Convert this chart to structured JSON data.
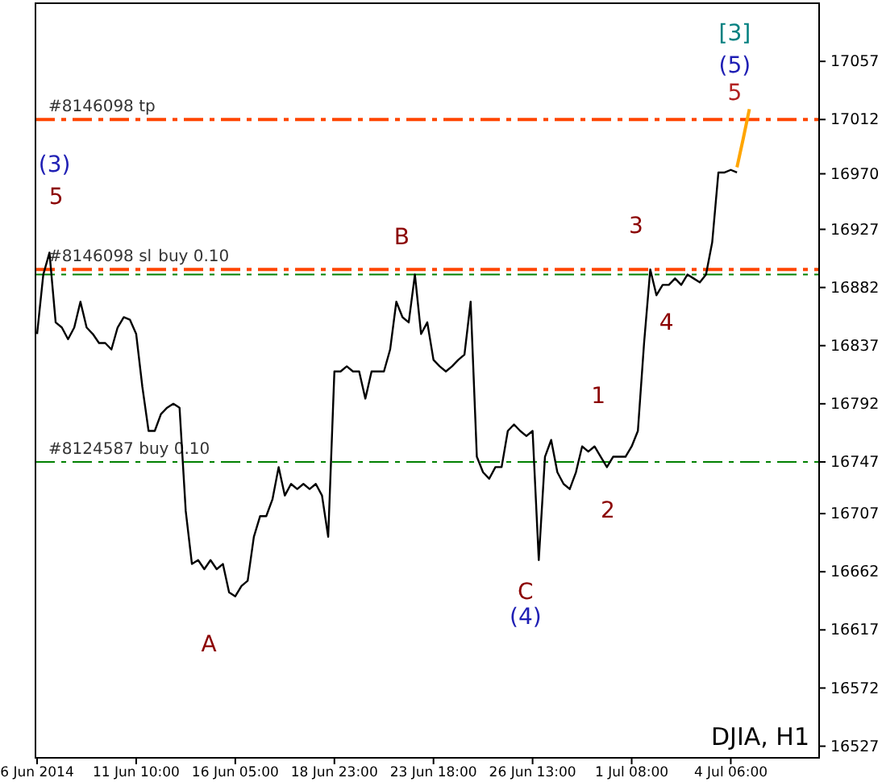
{
  "chart_data": {
    "type": "line",
    "categories": [
      "6 Jun 2014",
      null,
      null,
      null,
      null,
      null,
      null,
      null,
      null,
      null,
      null,
      null,
      null,
      null,
      null,
      null,
      "11 Jun 10:00",
      null,
      null,
      null,
      null,
      null,
      null,
      null,
      null,
      null,
      null,
      null,
      null,
      null,
      null,
      null,
      "16 Jun 05:00",
      null,
      null,
      null,
      null,
      null,
      null,
      null,
      null,
      null,
      null,
      null,
      null,
      null,
      null,
      null,
      "18 Jun 23:00",
      null,
      null,
      null,
      null,
      null,
      null,
      null,
      null,
      null,
      null,
      null,
      null,
      null,
      null,
      null,
      "23 Jun 18:00",
      null,
      null,
      null,
      null,
      null,
      null,
      null,
      null,
      null,
      null,
      null,
      null,
      null,
      null,
      null,
      "26 Jun 13:00",
      null,
      null,
      null,
      null,
      null,
      null,
      null,
      null,
      null,
      null,
      null,
      null,
      null,
      null,
      null,
      "1 Jul 08:00",
      null,
      null,
      null,
      null,
      null,
      null,
      null,
      null,
      null,
      null,
      null,
      null,
      null,
      null,
      null,
      "4 Jul 06:00",
      null,
      null,
      null,
      null,
      null,
      null,
      null,
      null,
      null,
      null,
      null,
      null,
      null,
      null
    ],
    "ylim": [
      16518,
      17102
    ],
    "yticks": [
      17057,
      17012,
      16970,
      16927,
      16882,
      16837,
      16792,
      16747,
      16707,
      16662,
      16617,
      16572,
      16527
    ],
    "grid": false,
    "marker": "none",
    "line_style": "solid",
    "series": [
      {
        "color": "#000000",
        "values": [
          16846,
          16892,
          16909,
          16855,
          16851,
          16842,
          16851,
          16871,
          16851,
          16846,
          16839,
          16839,
          16834,
          16851,
          16859,
          16857,
          16846,
          16805,
          16771,
          16771,
          16784,
          16789,
          16792,
          16789,
          16709,
          16668,
          16671,
          16664,
          16671,
          16664,
          16668,
          16646,
          16643,
          16651,
          16655,
          16689,
          16705,
          16705,
          16718,
          16743,
          16721,
          16730,
          16726,
          16730,
          16726,
          16730,
          16721,
          16689,
          16817,
          16817,
          16821,
          16817,
          16817,
          16796,
          16817,
          16817,
          16817,
          16834,
          16871,
          16859,
          16855,
          16892,
          16846,
          16855,
          16826,
          16821,
          16817,
          16821,
          16826,
          16830,
          16871,
          16751,
          16739,
          16734,
          16743,
          16743,
          16771,
          16776,
          16771,
          16767,
          16771,
          16671,
          16751,
          16764,
          16739,
          16730,
          16726,
          16739,
          16759,
          16755,
          16759,
          16751,
          16743,
          16751,
          16751,
          16751,
          16759,
          16771,
          16839,
          16896,
          16876,
          16884,
          16884,
          16889,
          16884,
          16892,
          16889,
          16886,
          16892,
          16917,
          16971,
          16971,
          16973,
          16971,
          null,
          null,
          null,
          null,
          null,
          null,
          null,
          null,
          null,
          null,
          null,
          null,
          null
        ]
      },
      {
        "color": "#ffa500",
        "values": [
          null,
          null,
          null,
          null,
          null,
          null,
          null,
          null,
          null,
          null,
          null,
          null,
          null,
          null,
          null,
          null,
          null,
          null,
          null,
          null,
          null,
          null,
          null,
          null,
          null,
          null,
          null,
          null,
          null,
          null,
          null,
          null,
          null,
          null,
          null,
          null,
          null,
          null,
          null,
          null,
          null,
          null,
          null,
          null,
          null,
          null,
          null,
          null,
          null,
          null,
          null,
          null,
          null,
          null,
          null,
          null,
          null,
          null,
          null,
          null,
          null,
          null,
          null,
          null,
          null,
          null,
          null,
          null,
          null,
          null,
          null,
          null,
          null,
          null,
          null,
          null,
          null,
          null,
          null,
          null,
          null,
          null,
          null,
          null,
          null,
          null,
          null,
          null,
          null,
          null,
          null,
          null,
          null,
          null,
          null,
          null,
          null,
          null,
          null,
          null,
          null,
          null,
          null,
          null,
          null,
          null,
          null,
          null,
          null,
          null,
          null,
          null,
          null,
          16975,
          16997,
          17020,
          null,
          null,
          null,
          null,
          null,
          null,
          null,
          null,
          null,
          null,
          null
        ]
      }
    ],
    "ref_lines": [
      {
        "axis": "y",
        "value": 17012,
        "label": "#8146098 tp",
        "color": "#ff4500",
        "line_style": "dashed"
      },
      {
        "axis": "y",
        "value": 16896,
        "label": "#8146098 sl",
        "color": "#ff4500",
        "line_style": "dashed"
      },
      {
        "axis": "y",
        "value": 16892,
        "label": "buy 0.10",
        "color": "#008000",
        "line_style": "dashed"
      },
      {
        "axis": "y",
        "value": 16747,
        "label": "#8124587 buy 0.10",
        "color": "#008000",
        "line_style": "dashed"
      }
    ],
    "annotations": [
      "(3)",
      "5",
      "A",
      "B",
      "C",
      "(4)",
      "1",
      "2",
      "3",
      "4",
      "5",
      "(5)",
      "[3]",
      "DJIA, H1"
    ]
  }
}
